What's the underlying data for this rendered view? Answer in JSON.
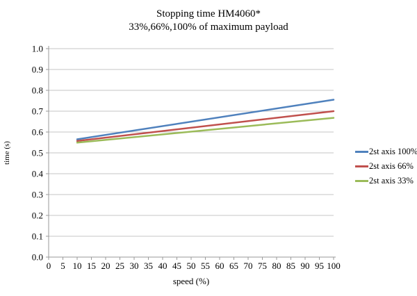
{
  "title": "Stopping time HM4060*",
  "subtitle": "33%,66%,100% of maximum payload",
  "chart_data": {
    "type": "line",
    "title": "Stopping time HM4060*",
    "subtitle": "33%,66%,100% of maximum payload",
    "xlabel": "speed (%)",
    "ylabel": "time (s)",
    "xlim": [
      0,
      100
    ],
    "ylim": [
      0.0,
      1.0
    ],
    "x_ticks": [
      "0",
      "5",
      "10",
      "15",
      "20",
      "25",
      "30",
      "35",
      "40",
      "45",
      "50",
      "55",
      "60",
      "65",
      "70",
      "75",
      "80",
      "85",
      "90",
      "95",
      "100"
    ],
    "y_ticks": [
      "0.0",
      "0.1",
      "0.2",
      "0.3",
      "0.4",
      "0.5",
      "0.6",
      "0.7",
      "0.8",
      "0.9",
      "1.0"
    ],
    "grid": "horizontal",
    "legend_position": "right",
    "series": [
      {
        "name": "2st axis 100%",
        "color": "#4F81BD",
        "x": [
          10,
          100
        ],
        "values": [
          0.565,
          0.755
        ]
      },
      {
        "name": "2st axis 66%",
        "color": "#C0504D",
        "x": [
          10,
          100
        ],
        "values": [
          0.557,
          0.7
        ]
      },
      {
        "name": "2st axis 33%",
        "color": "#9BBB59",
        "x": [
          10,
          100
        ],
        "values": [
          0.549,
          0.668
        ]
      }
    ]
  },
  "colors": {
    "grid": "#C6C6C6",
    "axis": "#9A9A9A",
    "text": "#000000",
    "background": "#FFFFFF"
  }
}
